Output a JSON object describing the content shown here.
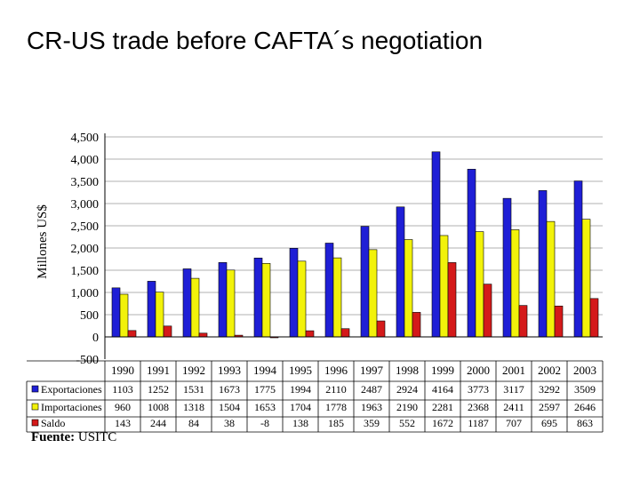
{
  "title": "CR-US trade before CAFTA´s negotiation",
  "source": {
    "label": "Fuente:",
    "value": "USITC"
  },
  "chart_data": {
    "type": "bar",
    "ylabel": "Millones US$",
    "ylim": [
      -500,
      4500
    ],
    "yticks": [
      -500,
      0,
      500,
      1000,
      1500,
      2000,
      2500,
      3000,
      3500,
      4000,
      4500
    ],
    "ytick_labels": [
      "-500",
      "0",
      "500",
      "1,000",
      "1,500",
      "2,000",
      "2,500",
      "3,000",
      "3,500",
      "4,000",
      "4,500"
    ],
    "grid": true,
    "categories": [
      "1990",
      "1991",
      "1992",
      "1993",
      "1994",
      "1995",
      "1996",
      "1997",
      "1998",
      "1999",
      "2000",
      "2001",
      "2002",
      "2003"
    ],
    "series": [
      {
        "name": "Exportaciones",
        "color": "#1f1fd6",
        "values": [
          1103,
          1252,
          1531,
          1673,
          1775,
          1994,
          2110,
          2487,
          2924,
          4164,
          3773,
          3117,
          3292,
          3509
        ]
      },
      {
        "name": "Importaciones",
        "color": "#f2f20a",
        "values": [
          960,
          1008,
          1318,
          1504,
          1653,
          1704,
          1778,
          1963,
          2190,
          2281,
          2368,
          2411,
          2597,
          2646
        ]
      },
      {
        "name": "Saldo",
        "color": "#d41a1a",
        "values": [
          143,
          244,
          84,
          38,
          -8,
          138,
          185,
          359,
          552,
          1672,
          1187,
          707,
          695,
          863
        ]
      }
    ],
    "data_table_labels": {
      "Exportaciones": [
        "1103",
        "1252",
        "1531",
        "1673",
        "1775",
        "1994",
        "2110",
        "2487",
        "2924",
        "4164",
        "3773",
        "3117",
        "3292",
        "3509"
      ],
      "Importaciones": [
        "960",
        "1008",
        "1318",
        "1504",
        "1653",
        "1704",
        "1778",
        "1963",
        "2190",
        "2281",
        "2368",
        "2411",
        "2597",
        "2646"
      ],
      "Saldo": [
        "143",
        "244",
        "84",
        "38",
        "-8",
        "138",
        "185",
        "359",
        "552",
        "1672",
        "1187",
        "707",
        "695",
        "863"
      ]
    }
  }
}
